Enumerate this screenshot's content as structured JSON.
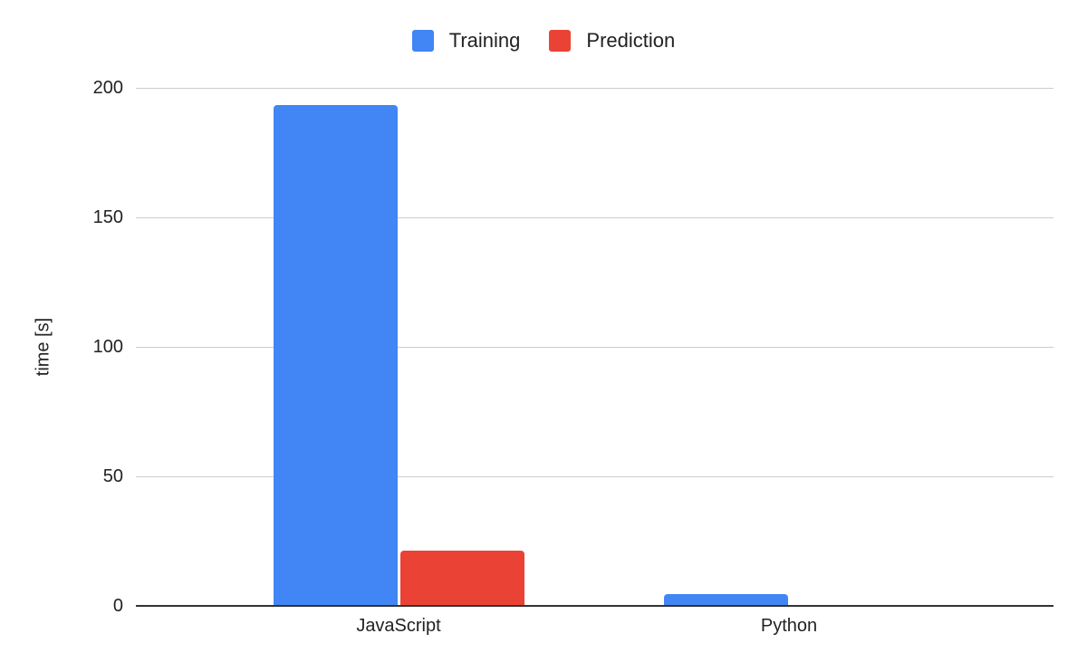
{
  "chart_data": {
    "type": "bar",
    "title": "",
    "xlabel": "",
    "ylabel": "time [s]",
    "ylim": [
      0,
      200
    ],
    "yticks": [
      0,
      50,
      100,
      150,
      200
    ],
    "grid": true,
    "legend_position": "top",
    "categories": [
      "JavaScript",
      "Python"
    ],
    "series": [
      {
        "name": "Training",
        "color": "#4285f4",
        "values": [
          193.5,
          4.5
        ]
      },
      {
        "name": "Prediction",
        "color": "#ea4335",
        "values": [
          21.3,
          0
        ]
      }
    ]
  },
  "legend": {
    "items": [
      {
        "label": "Training",
        "color": "#4285f4"
      },
      {
        "label": "Prediction",
        "color": "#ea4335"
      }
    ]
  },
  "axis": {
    "ylabel": "time [s]",
    "yticks": [
      "0",
      "50",
      "100",
      "150",
      "200"
    ],
    "xticks": [
      "JavaScript",
      "Python"
    ]
  }
}
